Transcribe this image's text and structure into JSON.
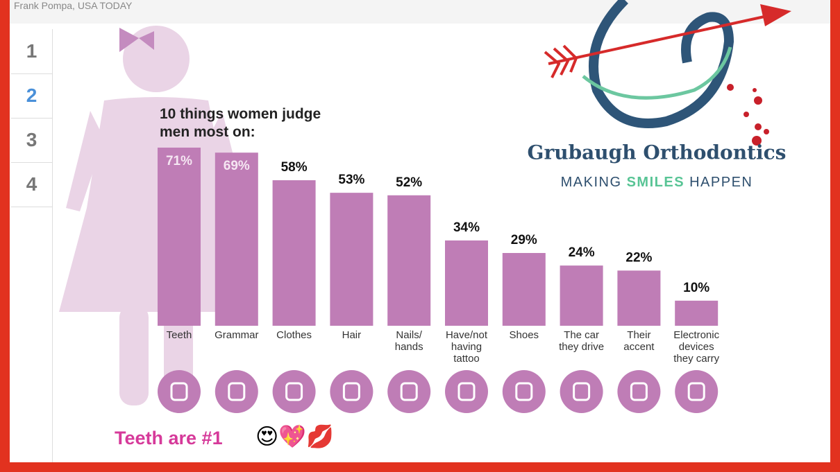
{
  "credit": "Frank Pompa, USA TODAY",
  "sidebar": {
    "items": [
      "1",
      "2",
      "3",
      "4"
    ],
    "active": 1
  },
  "logo": {
    "name": "Grubaugh Orthodontics",
    "tagline": [
      "MAKING",
      "SMILES",
      "HAPPEN"
    ]
  },
  "caption": "Teeth are #1",
  "emojis": "😍💖💋",
  "chart_data": {
    "type": "bar",
    "title": "10 things women judge men most on:",
    "categories": [
      "Teeth",
      "Grammar",
      "Clothes",
      "Hair",
      "Nails/ hands",
      "Have/not having tattoo",
      "Shoes",
      "The car they drive",
      "Their accent",
      "Electronic devices they carry"
    ],
    "values": [
      71,
      69,
      58,
      53,
      52,
      34,
      29,
      24,
      22,
      10
    ],
    "value_labels": [
      "71%",
      "69%",
      "58%",
      "53%",
      "52%",
      "34%",
      "29%",
      "24%",
      "22%",
      "10%"
    ],
    "color": "#bf7db6"
  }
}
